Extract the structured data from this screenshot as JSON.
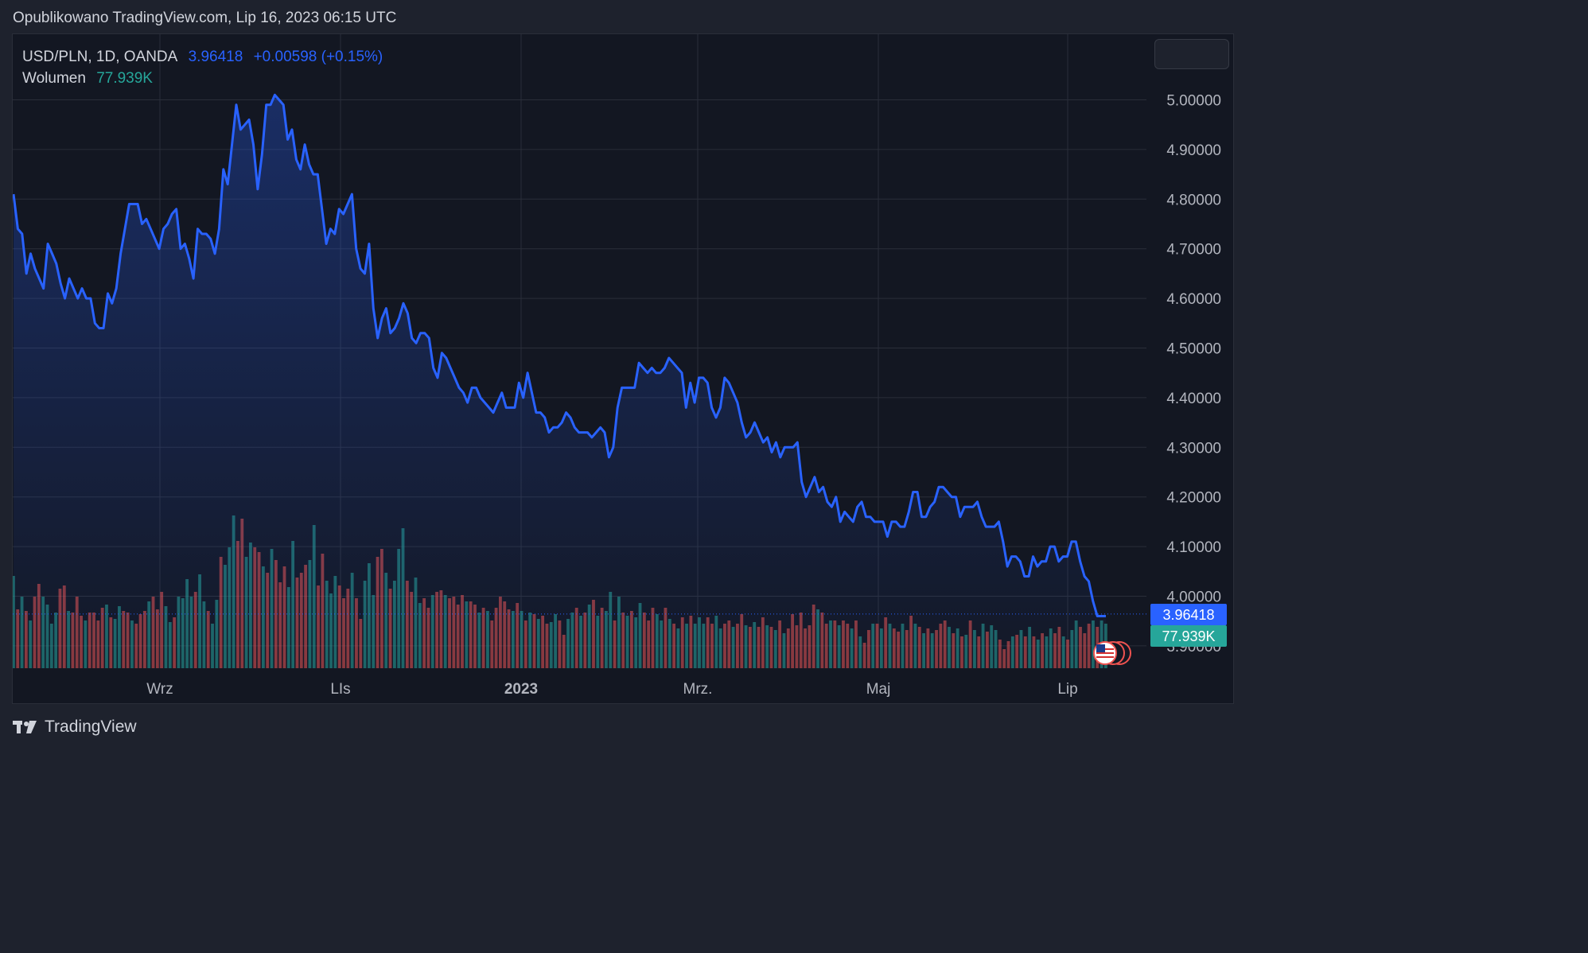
{
  "header": {
    "published": "Opublikowano TradingView.com, Lip 16, 2023 06:15 UTC"
  },
  "legend": {
    "symbol": "USD/PLN, 1D, OANDA",
    "price": "3.96418",
    "change": "+0.00598 (+0.15%)",
    "volume_label": "Wolumen",
    "volume_value": "77.939K"
  },
  "price_badge": "3.96418",
  "volume_badge": "77.939K",
  "footer": {
    "brand": "TradingView"
  },
  "colors": {
    "line": "#2962ff",
    "up": "#26a69a",
    "down": "#ef5350",
    "background": "#131722",
    "grid": "#2a2e39"
  },
  "icons": [
    "tradingview-logo-icon",
    "us-flag-icon"
  ],
  "chart_data": {
    "type": "line",
    "symbol": "USD/PLN",
    "interval": "1D",
    "x_tick_labels": [
      "Wrz",
      "LIs",
      "2023",
      "Mrz.",
      "Maj",
      "Lip"
    ],
    "y_tick_labels": [
      "3.90000",
      "4.00000",
      "4.10000",
      "4.20000",
      "4.30000",
      "4.40000",
      "4.50000",
      "4.60000",
      "4.70000",
      "4.80000",
      "4.90000",
      "5.00000"
    ],
    "ylim": [
      3.87,
      5.07
    ],
    "grid": true,
    "last_price": 3.96418,
    "series": [
      {
        "values": [
          4.81,
          4.74,
          4.73,
          4.65,
          4.69,
          4.66,
          4.64,
          4.62,
          4.71,
          4.69,
          4.67,
          4.63,
          4.6,
          4.64,
          4.62,
          4.6,
          4.62,
          4.6,
          4.6,
          4.55,
          4.54,
          4.54,
          4.61,
          4.59,
          4.62,
          4.69,
          4.74,
          4.79,
          4.79,
          4.79,
          4.75,
          4.76,
          4.74,
          4.72,
          4.7,
          4.74,
          4.75,
          4.77,
          4.78,
          4.7,
          4.71,
          4.68,
          4.64,
          4.74,
          4.73,
          4.73,
          4.72,
          4.69,
          4.74,
          4.86,
          4.83,
          4.91,
          4.99,
          4.94,
          4.95,
          4.96,
          4.91,
          4.82,
          4.89,
          4.99,
          4.99,
          5.01,
          5.0,
          4.99,
          4.92,
          4.94,
          4.88,
          4.86,
          4.91,
          4.87,
          4.85,
          4.85,
          4.78,
          4.71,
          4.74,
          4.73,
          4.78,
          4.77,
          4.79,
          4.81,
          4.7,
          4.66,
          4.65,
          4.71,
          4.58,
          4.52,
          4.56,
          4.58,
          4.53,
          4.54,
          4.56,
          4.59,
          4.57,
          4.52,
          4.51,
          4.53,
          4.53,
          4.52,
          4.46,
          4.44,
          4.49,
          4.48,
          4.46,
          4.44,
          4.42,
          4.41,
          4.39,
          4.42,
          4.42,
          4.4,
          4.39,
          4.38,
          4.37,
          4.39,
          4.41,
          4.38,
          4.38,
          4.38,
          4.43,
          4.4,
          4.45,
          4.41,
          4.37,
          4.37,
          4.36,
          4.33,
          4.34,
          4.34,
          4.35,
          4.37,
          4.36,
          4.34,
          4.33,
          4.33,
          4.33,
          4.32,
          4.33,
          4.34,
          4.33,
          4.28,
          4.3,
          4.38,
          4.42,
          4.42,
          4.42,
          4.42,
          4.47,
          4.46,
          4.45,
          4.46,
          4.45,
          4.45,
          4.46,
          4.48,
          4.47,
          4.46,
          4.45,
          4.38,
          4.43,
          4.39,
          4.44,
          4.44,
          4.43,
          4.38,
          4.36,
          4.38,
          4.44,
          4.43,
          4.41,
          4.39,
          4.35,
          4.32,
          4.33,
          4.35,
          4.33,
          4.31,
          4.32,
          4.29,
          4.31,
          4.28,
          4.3,
          4.3,
          4.3,
          4.31,
          4.23,
          4.2,
          4.22,
          4.24,
          4.21,
          4.22,
          4.19,
          4.18,
          4.2,
          4.15,
          4.17,
          4.16,
          4.15,
          4.18,
          4.19,
          4.16,
          4.16,
          4.15,
          4.15,
          4.15,
          4.12,
          4.15,
          4.15,
          4.14,
          4.14,
          4.17,
          4.21,
          4.21,
          4.16,
          4.16,
          4.18,
          4.19,
          4.22,
          4.22,
          4.21,
          4.2,
          4.2,
          4.16,
          4.18,
          4.18,
          4.18,
          4.19,
          4.16,
          4.14,
          4.14,
          4.14,
          4.15,
          4.11,
          4.06,
          4.08,
          4.08,
          4.07,
          4.04,
          4.04,
          4.08,
          4.06,
          4.07,
          4.07,
          4.1,
          4.1,
          4.07,
          4.08,
          4.08,
          4.11,
          4.11,
          4.07,
          4.04,
          4.03,
          3.99,
          3.96,
          3.96,
          3.96
        ]
      }
    ],
    "volume": [
      {
        "v": 0.58,
        "c": "up"
      },
      {
        "v": 0.37,
        "c": "down"
      },
      {
        "v": 0.45,
        "c": "up"
      },
      {
        "v": 0.36,
        "c": "down"
      },
      {
        "v": 0.3,
        "c": "up"
      },
      {
        "v": 0.45,
        "c": "down"
      },
      {
        "v": 0.53,
        "c": "down"
      },
      {
        "v": 0.45,
        "c": "up"
      },
      {
        "v": 0.4,
        "c": "up"
      },
      {
        "v": 0.28,
        "c": "up"
      },
      {
        "v": 0.35,
        "c": "up"
      },
      {
        "v": 0.5,
        "c": "down"
      },
      {
        "v": 0.52,
        "c": "down"
      },
      {
        "v": 0.36,
        "c": "up"
      },
      {
        "v": 0.35,
        "c": "down"
      },
      {
        "v": 0.45,
        "c": "down"
      },
      {
        "v": 0.33,
        "c": "down"
      },
      {
        "v": 0.3,
        "c": "up"
      },
      {
        "v": 0.35,
        "c": "down"
      },
      {
        "v": 0.35,
        "c": "down"
      },
      {
        "v": 0.3,
        "c": "down"
      },
      {
        "v": 0.38,
        "c": "down"
      },
      {
        "v": 0.4,
        "c": "up"
      },
      {
        "v": 0.32,
        "c": "down"
      },
      {
        "v": 0.31,
        "c": "up"
      },
      {
        "v": 0.39,
        "c": "up"
      },
      {
        "v": 0.36,
        "c": "down"
      },
      {
        "v": 0.35,
        "c": "down"
      },
      {
        "v": 0.3,
        "c": "up"
      },
      {
        "v": 0.28,
        "c": "down"
      },
      {
        "v": 0.34,
        "c": "down"
      },
      {
        "v": 0.36,
        "c": "down"
      },
      {
        "v": 0.42,
        "c": "up"
      },
      {
        "v": 0.45,
        "c": "down"
      },
      {
        "v": 0.37,
        "c": "down"
      },
      {
        "v": 0.48,
        "c": "down"
      },
      {
        "v": 0.39,
        "c": "up"
      },
      {
        "v": 0.29,
        "c": "up"
      },
      {
        "v": 0.32,
        "c": "down"
      },
      {
        "v": 0.45,
        "c": "up"
      },
      {
        "v": 0.44,
        "c": "up"
      },
      {
        "v": 0.56,
        "c": "up"
      },
      {
        "v": 0.45,
        "c": "up"
      },
      {
        "v": 0.48,
        "c": "down"
      },
      {
        "v": 0.59,
        "c": "up"
      },
      {
        "v": 0.42,
        "c": "up"
      },
      {
        "v": 0.36,
        "c": "down"
      },
      {
        "v": 0.28,
        "c": "up"
      },
      {
        "v": 0.43,
        "c": "up"
      },
      {
        "v": 0.7,
        "c": "down"
      },
      {
        "v": 0.65,
        "c": "up"
      },
      {
        "v": 0.76,
        "c": "up"
      },
      {
        "v": 0.96,
        "c": "up"
      },
      {
        "v": 0.8,
        "c": "down"
      },
      {
        "v": 0.94,
        "c": "down"
      },
      {
        "v": 0.7,
        "c": "up"
      },
      {
        "v": 0.79,
        "c": "up"
      },
      {
        "v": 0.76,
        "c": "down"
      },
      {
        "v": 0.73,
        "c": "down"
      },
      {
        "v": 0.64,
        "c": "up"
      },
      {
        "v": 0.6,
        "c": "down"
      },
      {
        "v": 0.75,
        "c": "up"
      },
      {
        "v": 0.68,
        "c": "down"
      },
      {
        "v": 0.54,
        "c": "down"
      },
      {
        "v": 0.64,
        "c": "down"
      },
      {
        "v": 0.51,
        "c": "up"
      },
      {
        "v": 0.8,
        "c": "up"
      },
      {
        "v": 0.57,
        "c": "down"
      },
      {
        "v": 0.6,
        "c": "down"
      },
      {
        "v": 0.65,
        "c": "down"
      },
      {
        "v": 0.68,
        "c": "up"
      },
      {
        "v": 0.9,
        "c": "up"
      },
      {
        "v": 0.52,
        "c": "down"
      },
      {
        "v": 0.72,
        "c": "down"
      },
      {
        "v": 0.55,
        "c": "up"
      },
      {
        "v": 0.47,
        "c": "up"
      },
      {
        "v": 0.58,
        "c": "up"
      },
      {
        "v": 0.52,
        "c": "down"
      },
      {
        "v": 0.44,
        "c": "down"
      },
      {
        "v": 0.5,
        "c": "down"
      },
      {
        "v": 0.6,
        "c": "up"
      },
      {
        "v": 0.44,
        "c": "down"
      },
      {
        "v": 0.31,
        "c": "down"
      },
      {
        "v": 0.55,
        "c": "up"
      },
      {
        "v": 0.66,
        "c": "up"
      },
      {
        "v": 0.46,
        "c": "up"
      },
      {
        "v": 0.7,
        "c": "down"
      },
      {
        "v": 0.75,
        "c": "down"
      },
      {
        "v": 0.6,
        "c": "up"
      },
      {
        "v": 0.5,
        "c": "down"
      },
      {
        "v": 0.55,
        "c": "up"
      },
      {
        "v": 0.75,
        "c": "up"
      },
      {
        "v": 0.88,
        "c": "up"
      },
      {
        "v": 0.55,
        "c": "down"
      },
      {
        "v": 0.48,
        "c": "down"
      },
      {
        "v": 0.57,
        "c": "up"
      },
      {
        "v": 0.41,
        "c": "up"
      },
      {
        "v": 0.44,
        "c": "down"
      },
      {
        "v": 0.38,
        "c": "down"
      },
      {
        "v": 0.46,
        "c": "up"
      },
      {
        "v": 0.48,
        "c": "down"
      },
      {
        "v": 0.49,
        "c": "down"
      },
      {
        "v": 0.46,
        "c": "up"
      },
      {
        "v": 0.44,
        "c": "down"
      },
      {
        "v": 0.45,
        "c": "down"
      },
      {
        "v": 0.4,
        "c": "down"
      },
      {
        "v": 0.46,
        "c": "down"
      },
      {
        "v": 0.42,
        "c": "up"
      },
      {
        "v": 0.42,
        "c": "down"
      },
      {
        "v": 0.4,
        "c": "down"
      },
      {
        "v": 0.35,
        "c": "up"
      },
      {
        "v": 0.38,
        "c": "down"
      },
      {
        "v": 0.36,
        "c": "up"
      },
      {
        "v": 0.3,
        "c": "down"
      },
      {
        "v": 0.38,
        "c": "down"
      },
      {
        "v": 0.45,
        "c": "down"
      },
      {
        "v": 0.42,
        "c": "down"
      },
      {
        "v": 0.37,
        "c": "down"
      },
      {
        "v": 0.36,
        "c": "up"
      },
      {
        "v": 0.41,
        "c": "down"
      },
      {
        "v": 0.36,
        "c": "up"
      },
      {
        "v": 0.3,
        "c": "down"
      },
      {
        "v": 0.35,
        "c": "up"
      },
      {
        "v": 0.34,
        "c": "down"
      },
      {
        "v": 0.31,
        "c": "up"
      },
      {
        "v": 0.33,
        "c": "down"
      },
      {
        "v": 0.28,
        "c": "down"
      },
      {
        "v": 0.29,
        "c": "up"
      },
      {
        "v": 0.34,
        "c": "up"
      },
      {
        "v": 0.3,
        "c": "down"
      },
      {
        "v": 0.21,
        "c": "down"
      },
      {
        "v": 0.31,
        "c": "up"
      },
      {
        "v": 0.35,
        "c": "up"
      },
      {
        "v": 0.38,
        "c": "down"
      },
      {
        "v": 0.33,
        "c": "up"
      },
      {
        "v": 0.35,
        "c": "down"
      },
      {
        "v": 0.4,
        "c": "up"
      },
      {
        "v": 0.43,
        "c": "down"
      },
      {
        "v": 0.33,
        "c": "up"
      },
      {
        "v": 0.38,
        "c": "down"
      },
      {
        "v": 0.36,
        "c": "up"
      },
      {
        "v": 0.48,
        "c": "up"
      },
      {
        "v": 0.3,
        "c": "down"
      },
      {
        "v": 0.45,
        "c": "up"
      },
      {
        "v": 0.35,
        "c": "down"
      },
      {
        "v": 0.33,
        "c": "up"
      },
      {
        "v": 0.36,
        "c": "down"
      },
      {
        "v": 0.32,
        "c": "up"
      },
      {
        "v": 0.41,
        "c": "up"
      },
      {
        "v": 0.35,
        "c": "down"
      },
      {
        "v": 0.3,
        "c": "down"
      },
      {
        "v": 0.38,
        "c": "down"
      },
      {
        "v": 0.34,
        "c": "up"
      },
      {
        "v": 0.3,
        "c": "up"
      },
      {
        "v": 0.38,
        "c": "down"
      },
      {
        "v": 0.31,
        "c": "up"
      },
      {
        "v": 0.28,
        "c": "down"
      },
      {
        "v": 0.25,
        "c": "up"
      },
      {
        "v": 0.32,
        "c": "down"
      },
      {
        "v": 0.28,
        "c": "up"
      },
      {
        "v": 0.33,
        "c": "down"
      },
      {
        "v": 0.28,
        "c": "up"
      },
      {
        "v": 0.32,
        "c": "up"
      },
      {
        "v": 0.28,
        "c": "up"
      },
      {
        "v": 0.32,
        "c": "down"
      },
      {
        "v": 0.28,
        "c": "down"
      },
      {
        "v": 0.33,
        "c": "up"
      },
      {
        "v": 0.25,
        "c": "up"
      },
      {
        "v": 0.28,
        "c": "down"
      },
      {
        "v": 0.3,
        "c": "down"
      },
      {
        "v": 0.26,
        "c": "up"
      },
      {
        "v": 0.28,
        "c": "down"
      },
      {
        "v": 0.34,
        "c": "down"
      },
      {
        "v": 0.27,
        "c": "up"
      },
      {
        "v": 0.26,
        "c": "down"
      },
      {
        "v": 0.29,
        "c": "up"
      },
      {
        "v": 0.26,
        "c": "down"
      },
      {
        "v": 0.32,
        "c": "down"
      },
      {
        "v": 0.27,
        "c": "up"
      },
      {
        "v": 0.26,
        "c": "down"
      },
      {
        "v": 0.24,
        "c": "up"
      },
      {
        "v": 0.3,
        "c": "down"
      },
      {
        "v": 0.22,
        "c": "up"
      },
      {
        "v": 0.25,
        "c": "down"
      },
      {
        "v": 0.34,
        "c": "down"
      },
      {
        "v": 0.27,
        "c": "down"
      },
      {
        "v": 0.35,
        "c": "down"
      },
      {
        "v": 0.25,
        "c": "down"
      },
      {
        "v": 0.27,
        "c": "down"
      },
      {
        "v": 0.4,
        "c": "down"
      },
      {
        "v": 0.37,
        "c": "up"
      },
      {
        "v": 0.35,
        "c": "down"
      },
      {
        "v": 0.28,
        "c": "down"
      },
      {
        "v": 0.3,
        "c": "up"
      },
      {
        "v": 0.3,
        "c": "down"
      },
      {
        "v": 0.27,
        "c": "up"
      },
      {
        "v": 0.3,
        "c": "down"
      },
      {
        "v": 0.28,
        "c": "down"
      },
      {
        "v": 0.25,
        "c": "up"
      },
      {
        "v": 0.3,
        "c": "down"
      },
      {
        "v": 0.2,
        "c": "up"
      },
      {
        "v": 0.16,
        "c": "down"
      },
      {
        "v": 0.24,
        "c": "down"
      },
      {
        "v": 0.28,
        "c": "up"
      },
      {
        "v": 0.28,
        "c": "down"
      },
      {
        "v": 0.25,
        "c": "up"
      },
      {
        "v": 0.32,
        "c": "down"
      },
      {
        "v": 0.28,
        "c": "up"
      },
      {
        "v": 0.25,
        "c": "down"
      },
      {
        "v": 0.23,
        "c": "down"
      },
      {
        "v": 0.28,
        "c": "up"
      },
      {
        "v": 0.24,
        "c": "down"
      },
      {
        "v": 0.33,
        "c": "down"
      },
      {
        "v": 0.28,
        "c": "up"
      },
      {
        "v": 0.26,
        "c": "down"
      },
      {
        "v": 0.22,
        "c": "up"
      },
      {
        "v": 0.25,
        "c": "down"
      },
      {
        "v": 0.22,
        "c": "up"
      },
      {
        "v": 0.24,
        "c": "down"
      },
      {
        "v": 0.28,
        "c": "down"
      },
      {
        "v": 0.3,
        "c": "down"
      },
      {
        "v": 0.26,
        "c": "up"
      },
      {
        "v": 0.22,
        "c": "down"
      },
      {
        "v": 0.25,
        "c": "up"
      },
      {
        "v": 0.2,
        "c": "down"
      },
      {
        "v": 0.21,
        "c": "up"
      },
      {
        "v": 0.3,
        "c": "down"
      },
      {
        "v": 0.24,
        "c": "up"
      },
      {
        "v": 0.2,
        "c": "down"
      },
      {
        "v": 0.28,
        "c": "up"
      },
      {
        "v": 0.23,
        "c": "down"
      },
      {
        "v": 0.27,
        "c": "up"
      },
      {
        "v": 0.24,
        "c": "up"
      },
      {
        "v": 0.18,
        "c": "down"
      },
      {
        "v": 0.12,
        "c": "down"
      },
      {
        "v": 0.17,
        "c": "down"
      },
      {
        "v": 0.2,
        "c": "up"
      },
      {
        "v": 0.21,
        "c": "down"
      },
      {
        "v": 0.24,
        "c": "up"
      },
      {
        "v": 0.2,
        "c": "down"
      },
      {
        "v": 0.26,
        "c": "up"
      },
      {
        "v": 0.2,
        "c": "down"
      },
      {
        "v": 0.18,
        "c": "up"
      },
      {
        "v": 0.22,
        "c": "down"
      },
      {
        "v": 0.2,
        "c": "up"
      },
      {
        "v": 0.25,
        "c": "up"
      },
      {
        "v": 0.22,
        "c": "down"
      },
      {
        "v": 0.26,
        "c": "down"
      },
      {
        "v": 0.2,
        "c": "up"
      },
      {
        "v": 0.18,
        "c": "down"
      },
      {
        "v": 0.24,
        "c": "up"
      },
      {
        "v": 0.3,
        "c": "up"
      },
      {
        "v": 0.26,
        "c": "down"
      },
      {
        "v": 0.22,
        "c": "down"
      },
      {
        "v": 0.28,
        "c": "down"
      },
      {
        "v": 0.3,
        "c": "up"
      },
      {
        "v": 0.26,
        "c": "down"
      },
      {
        "v": 0.3,
        "c": "up"
      },
      {
        "v": 0.28,
        "c": "up"
      }
    ]
  }
}
